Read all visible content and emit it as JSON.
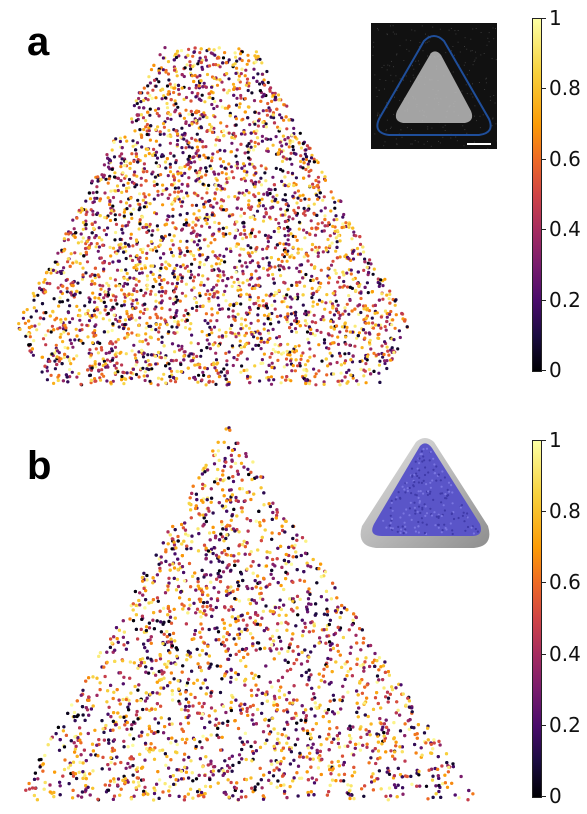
{
  "panels": [
    {
      "label": "a",
      "shape": "rounded-triangle",
      "inset": "microscopy-image",
      "scale_bar": true
    },
    {
      "label": "b",
      "shape": "triangle",
      "inset": "3d-rendered-prism"
    }
  ],
  "colorbar": {
    "colormap": "inferno",
    "ticks": [
      "1",
      "0.8",
      "0.6",
      "0.4",
      "0.2",
      "0"
    ]
  },
  "colors": {
    "inset_a_background": "#111111",
    "inset_a_outline": "#1f4e9a",
    "inset_b_particles": "#5a55c8",
    "inset_b_shell": "#b9b9b9"
  }
}
